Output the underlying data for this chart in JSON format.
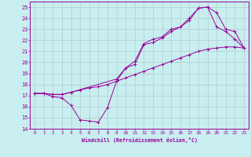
{
  "title": "",
  "xlabel": "Windchill (Refroidissement éolien,°C)",
  "xlim": [
    -0.5,
    23.5
  ],
  "ylim": [
    14,
    25.5
  ],
  "yticks": [
    14,
    15,
    16,
    17,
    18,
    19,
    20,
    21,
    22,
    23,
    24,
    25
  ],
  "xticks": [
    0,
    1,
    2,
    3,
    4,
    5,
    6,
    7,
    8,
    9,
    10,
    11,
    12,
    13,
    14,
    15,
    16,
    17,
    18,
    19,
    20,
    21,
    22,
    23
  ],
  "line_color": "#990099",
  "bg_color": "#c8eef0",
  "grid_color": "#b0cccc",
  "line1_x": [
    0,
    1,
    2,
    3,
    4,
    5,
    6,
    7,
    8,
    9,
    10,
    11,
    12,
    13,
    14,
    15,
    16,
    17,
    18,
    19,
    20,
    21,
    22,
    23
  ],
  "line1_y": [
    17.2,
    17.2,
    17.1,
    17.1,
    17.3,
    17.5,
    17.7,
    17.8,
    18.0,
    18.3,
    18.6,
    18.9,
    19.2,
    19.5,
    19.8,
    20.1,
    20.4,
    20.7,
    21.0,
    21.2,
    21.3,
    21.4,
    21.4,
    21.3
  ],
  "line2_x": [
    0,
    1,
    2,
    3,
    4,
    5,
    6,
    7,
    8,
    9,
    10,
    11,
    12,
    13,
    14,
    15,
    16,
    17,
    18,
    19,
    20,
    21,
    22,
    23
  ],
  "line2_y": [
    17.2,
    17.2,
    16.9,
    16.8,
    16.1,
    14.8,
    14.7,
    14.6,
    15.9,
    18.3,
    19.5,
    19.8,
    21.6,
    21.8,
    22.2,
    22.8,
    23.2,
    24.0,
    24.9,
    25.0,
    24.5,
    23.0,
    22.8,
    21.3
  ],
  "line3_x": [
    0,
    1,
    2,
    3,
    4,
    9,
    10,
    11,
    12,
    13,
    14,
    15,
    16,
    17,
    18,
    19,
    20,
    21,
    22,
    23
  ],
  "line3_y": [
    17.2,
    17.2,
    17.1,
    17.1,
    17.3,
    18.5,
    19.5,
    20.1,
    21.7,
    22.1,
    22.3,
    23.0,
    23.2,
    23.8,
    24.9,
    25.0,
    23.2,
    22.8,
    22.1,
    21.3
  ]
}
